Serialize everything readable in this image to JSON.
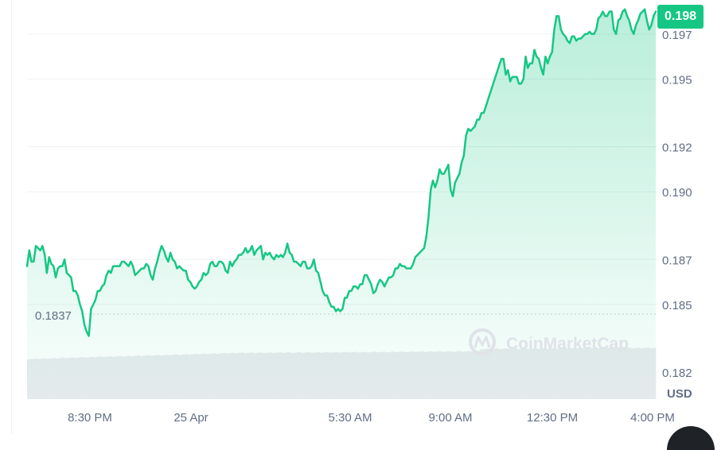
{
  "chart_data": {
    "type": "area",
    "title": "",
    "xlabel": "",
    "ylabel": "",
    "unit": "USD",
    "current_price": "0.198",
    "reference_price": "0.1837",
    "watermark": "CoinMarketCap",
    "x_ticks": [
      "8:30 PM",
      "25 Apr",
      "5:30 AM",
      "9:00 AM",
      "12:30 PM",
      "4:00 PM"
    ],
    "y_ticks": [
      "0.182",
      "0.185",
      "0.187",
      "0.190",
      "0.192",
      "0.195",
      "0.197"
    ],
    "ylim": [
      0.1808,
      0.1983
    ],
    "grid": true,
    "colors": {
      "line": "#16c784",
      "badge": "#16c784",
      "text": "#616e85",
      "grid": "#eff2f5",
      "volume": "#e9ebee"
    },
    "series": [
      {
        "values": [
          0.1867,
          0.1874,
          0.1869,
          0.1869,
          0.1876,
          0.1875,
          0.1874,
          0.1876,
          0.1872,
          0.1864,
          0.1871,
          0.1868,
          0.1867,
          0.1862,
          0.1866,
          0.1867,
          0.1867,
          0.187,
          0.1864,
          0.1863,
          0.1862,
          0.1856,
          0.1856,
          0.1854,
          0.185,
          0.1847,
          0.1841,
          0.1838,
          0.1836,
          0.1848,
          0.185,
          0.1852,
          0.1856,
          0.1856,
          0.1858,
          0.1859,
          0.1863,
          0.1865,
          0.1864,
          0.1867,
          0.1867,
          0.1867,
          0.1867,
          0.1869,
          0.1869,
          0.1868,
          0.1867,
          0.1869,
          0.1867,
          0.1863,
          0.1864,
          0.1865,
          0.1866,
          0.1866,
          0.1868,
          0.1867,
          0.1863,
          0.1861,
          0.1866,
          0.1869,
          0.1873,
          0.1876,
          0.1874,
          0.1871,
          0.1869,
          0.1873,
          0.187,
          0.1869,
          0.1866,
          0.1867,
          0.1866,
          0.1865,
          0.1865,
          0.1861,
          0.186,
          0.1858,
          0.1857,
          0.1858,
          0.186,
          0.1861,
          0.1864,
          0.1863,
          0.1864,
          0.1868,
          0.1869,
          0.1867,
          0.1867,
          0.1869,
          0.1869,
          0.1868,
          0.1865,
          0.1864,
          0.1869,
          0.1867,
          0.1869,
          0.187,
          0.1872,
          0.1872,
          0.1873,
          0.1875,
          0.1873,
          0.1874,
          0.1876,
          0.1872,
          0.1874,
          0.1875,
          0.1876,
          0.187,
          0.1873,
          0.1872,
          0.1873,
          0.1871,
          0.187,
          0.1872,
          0.1871,
          0.1872,
          0.1871,
          0.1873,
          0.1877,
          0.1873,
          0.1872,
          0.1869,
          0.1869,
          0.1868,
          0.1867,
          0.1869,
          0.1869,
          0.1866,
          0.1866,
          0.1867,
          0.187,
          0.1865,
          0.1864,
          0.186,
          0.1856,
          0.1854,
          0.1854,
          0.1851,
          0.1849,
          0.1849,
          0.1847,
          0.1848,
          0.1847,
          0.1848,
          0.1853,
          0.1853,
          0.1856,
          0.1856,
          0.1858,
          0.1858,
          0.1857,
          0.1859,
          0.1859,
          0.1863,
          0.1863,
          0.1861,
          0.1859,
          0.1855,
          0.1856,
          0.1859,
          0.1861,
          0.186,
          0.1858,
          0.186,
          0.1862,
          0.1862,
          0.1863,
          0.1866,
          0.1866,
          0.1868,
          0.1867,
          0.1867,
          0.1866,
          0.1866,
          0.1866,
          0.1868,
          0.1871,
          0.1872,
          0.1873,
          0.1874,
          0.1875,
          0.188,
          0.1889,
          0.1901,
          0.1905,
          0.1902,
          0.1905,
          0.191,
          0.1908,
          0.1908,
          0.191,
          0.1912,
          0.1901,
          0.1898,
          0.1904,
          0.1906,
          0.1908,
          0.1913,
          0.1916,
          0.1925,
          0.1928,
          0.1927,
          0.1928,
          0.1929,
          0.1932,
          0.1932,
          0.1935,
          0.1935,
          0.1938,
          0.1941,
          0.1944,
          0.1947,
          0.195,
          0.1953,
          0.1956,
          0.1959,
          0.1959,
          0.1952,
          0.1954,
          0.1949,
          0.1951,
          0.1951,
          0.1951,
          0.1948,
          0.1948,
          0.195,
          0.196,
          0.1955,
          0.1957,
          0.1957,
          0.1963,
          0.196,
          0.1959,
          0.1955,
          0.1952,
          0.196,
          0.1957,
          0.196,
          0.1962,
          0.1972,
          0.1978,
          0.1978,
          0.1972,
          0.197,
          0.1969,
          0.1967,
          0.1966,
          0.1969,
          0.1969,
          0.1967,
          0.1968,
          0.1968,
          0.1969,
          0.197,
          0.197,
          0.1971,
          0.197,
          0.197,
          0.1972,
          0.1977,
          0.1978,
          0.198,
          0.1978,
          0.1978,
          0.198,
          0.198,
          0.1972,
          0.197,
          0.1976,
          0.1977,
          0.198,
          0.1981,
          0.1978,
          0.1976,
          0.1972,
          0.197,
          0.1974,
          0.1976,
          0.1979,
          0.198,
          0.1981,
          0.1976,
          0.1972,
          0.1974,
          0.1978,
          0.198
        ]
      }
    ]
  }
}
